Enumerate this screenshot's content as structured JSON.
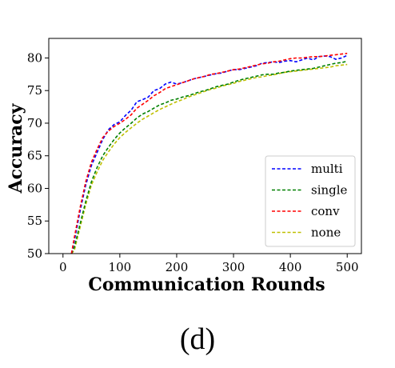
{
  "caption": "(d)",
  "chart_data": {
    "type": "line",
    "title": "",
    "xlabel": "Communication Rounds",
    "ylabel": "Accuracy",
    "xlim": [
      -25,
      525
    ],
    "ylim": [
      50,
      83
    ],
    "xticks": [
      0,
      100,
      200,
      300,
      400,
      500
    ],
    "yticks": [
      50,
      55,
      60,
      65,
      70,
      75,
      80
    ],
    "grid": false,
    "legend_position": "lower-right",
    "line_style": "dashed",
    "x": [
      15,
      20,
      30,
      40,
      50,
      60,
      70,
      80,
      90,
      100,
      110,
      120,
      130,
      140,
      150,
      160,
      170,
      180,
      190,
      200,
      210,
      220,
      230,
      240,
      250,
      260,
      270,
      280,
      290,
      300,
      310,
      320,
      330,
      340,
      350,
      360,
      370,
      380,
      390,
      400,
      410,
      420,
      430,
      440,
      450,
      460,
      470,
      480,
      490,
      500
    ],
    "series": [
      {
        "name": "multi",
        "color": "#0000ff",
        "values": [
          50.0,
          52.0,
          56.5,
          60.5,
          63.5,
          65.5,
          67.5,
          69.0,
          69.8,
          70.2,
          71.2,
          72.0,
          73.3,
          73.6,
          74.0,
          75.0,
          75.3,
          76.0,
          76.3,
          76.0,
          76.2,
          76.5,
          76.8,
          77.0,
          77.2,
          77.4,
          77.6,
          77.7,
          78.0,
          78.2,
          78.2,
          78.4,
          78.6,
          78.8,
          79.2,
          79.3,
          79.4,
          79.3,
          79.5,
          79.6,
          79.4,
          79.7,
          80.0,
          79.7,
          80.2,
          80.3,
          80.2,
          79.8,
          80.0,
          80.4
        ]
      },
      {
        "name": "single",
        "color": "#008000",
        "values": [
          50.0,
          51.0,
          54.5,
          58.0,
          61.0,
          63.2,
          65.0,
          66.3,
          67.5,
          68.5,
          69.3,
          70.0,
          70.8,
          71.4,
          71.8,
          72.3,
          72.8,
          73.1,
          73.5,
          73.7,
          74.0,
          74.2,
          74.5,
          74.8,
          75.0,
          75.3,
          75.6,
          75.8,
          76.0,
          76.3,
          76.6,
          76.8,
          77.0,
          77.2,
          77.4,
          77.5,
          77.5,
          77.7,
          77.8,
          78.0,
          78.1,
          78.2,
          78.3,
          78.4,
          78.6,
          78.8,
          79.0,
          79.2,
          79.3,
          79.5
        ]
      },
      {
        "name": "conv",
        "color": "#ff0000",
        "values": [
          50.0,
          52.5,
          57.0,
          61.0,
          64.0,
          66.0,
          67.8,
          68.8,
          69.5,
          70.0,
          70.6,
          71.3,
          72.3,
          72.9,
          73.5,
          74.2,
          74.7,
          75.3,
          75.6,
          75.9,
          76.2,
          76.5,
          76.8,
          77.0,
          77.2,
          77.5,
          77.6,
          77.8,
          78.0,
          78.2,
          78.3,
          78.5,
          78.7,
          78.9,
          79.1,
          79.2,
          79.4,
          79.5,
          79.7,
          79.9,
          80.0,
          80.0,
          80.1,
          80.2,
          80.2,
          80.3,
          80.4,
          80.5,
          80.6,
          80.7
        ]
      },
      {
        "name": "none",
        "color": "#bfbf00",
        "values": [
          50.0,
          50.5,
          54.0,
          57.5,
          60.5,
          62.5,
          64.3,
          65.6,
          66.8,
          67.8,
          68.6,
          69.3,
          70.0,
          70.6,
          71.1,
          71.6,
          72.1,
          72.5,
          72.9,
          73.3,
          73.6,
          74.0,
          74.3,
          74.6,
          74.9,
          75.2,
          75.4,
          75.7,
          75.9,
          76.1,
          76.4,
          76.6,
          76.8,
          77.0,
          77.1,
          77.3,
          77.4,
          77.6,
          77.8,
          77.9,
          78.0,
          78.1,
          78.2,
          78.3,
          78.4,
          78.5,
          78.6,
          78.8,
          78.9,
          79.0
        ]
      }
    ]
  }
}
